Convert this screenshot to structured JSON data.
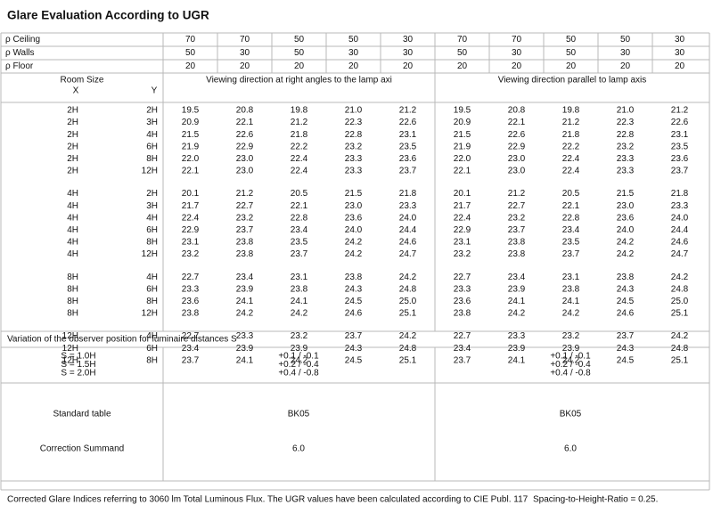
{
  "title": "Glare Evaluation According to UGR",
  "reflectances": [
    {
      "label": "ρ Ceiling",
      "values": [
        "70",
        "70",
        "50",
        "50",
        "30",
        "70",
        "70",
        "50",
        "50",
        "30"
      ]
    },
    {
      "label": "ρ Walls",
      "values": [
        "50",
        "30",
        "50",
        "30",
        "30",
        "50",
        "30",
        "50",
        "30",
        "30"
      ]
    },
    {
      "label": "ρ Floor",
      "values": [
        "20",
        "20",
        "20",
        "20",
        "20",
        "20",
        "20",
        "20",
        "20",
        "20"
      ]
    }
  ],
  "header": {
    "room_size": "Room Size",
    "x": "X",
    "y": "Y",
    "perpendicular": "Viewing direction at right angles to the lamp axi",
    "parallel": "Viewing direction parallel to lamp axis"
  },
  "groups": [
    {
      "rows": [
        {
          "x": "2H",
          "y": "2H",
          "values": [
            "19.5",
            "20.8",
            "19.8",
            "21.0",
            "21.2",
            "19.5",
            "20.8",
            "19.8",
            "21.0",
            "21.2"
          ]
        },
        {
          "x": "2H",
          "y": "3H",
          "values": [
            "20.9",
            "22.1",
            "21.2",
            "22.3",
            "22.6",
            "20.9",
            "22.1",
            "21.2",
            "22.3",
            "22.6"
          ]
        },
        {
          "x": "2H",
          "y": "4H",
          "values": [
            "21.5",
            "22.6",
            "21.8",
            "22.8",
            "23.1",
            "21.5",
            "22.6",
            "21.8",
            "22.8",
            "23.1"
          ]
        },
        {
          "x": "2H",
          "y": "6H",
          "values": [
            "21.9",
            "22.9",
            "22.2",
            "23.2",
            "23.5",
            "21.9",
            "22.9",
            "22.2",
            "23.2",
            "23.5"
          ]
        },
        {
          "x": "2H",
          "y": "8H",
          "values": [
            "22.0",
            "23.0",
            "22.4",
            "23.3",
            "23.6",
            "22.0",
            "23.0",
            "22.4",
            "23.3",
            "23.6"
          ]
        },
        {
          "x": "2H",
          "y": "12H",
          "values": [
            "22.1",
            "23.0",
            "22.4",
            "23.3",
            "23.7",
            "22.1",
            "23.0",
            "22.4",
            "23.3",
            "23.7"
          ]
        }
      ]
    },
    {
      "rows": [
        {
          "x": "4H",
          "y": "2H",
          "values": [
            "20.1",
            "21.2",
            "20.5",
            "21.5",
            "21.8",
            "20.1",
            "21.2",
            "20.5",
            "21.5",
            "21.8"
          ]
        },
        {
          "x": "4H",
          "y": "3H",
          "values": [
            "21.7",
            "22.7",
            "22.1",
            "23.0",
            "23.3",
            "21.7",
            "22.7",
            "22.1",
            "23.0",
            "23.3"
          ]
        },
        {
          "x": "4H",
          "y": "4H",
          "values": [
            "22.4",
            "23.2",
            "22.8",
            "23.6",
            "24.0",
            "22.4",
            "23.2",
            "22.8",
            "23.6",
            "24.0"
          ]
        },
        {
          "x": "4H",
          "y": "6H",
          "values": [
            "22.9",
            "23.7",
            "23.4",
            "24.0",
            "24.4",
            "22.9",
            "23.7",
            "23.4",
            "24.0",
            "24.4"
          ]
        },
        {
          "x": "4H",
          "y": "8H",
          "values": [
            "23.1",
            "23.8",
            "23.5",
            "24.2",
            "24.6",
            "23.1",
            "23.8",
            "23.5",
            "24.2",
            "24.6"
          ]
        },
        {
          "x": "4H",
          "y": "12H",
          "values": [
            "23.2",
            "23.8",
            "23.7",
            "24.2",
            "24.7",
            "23.2",
            "23.8",
            "23.7",
            "24.2",
            "24.7"
          ]
        }
      ]
    },
    {
      "rows": [
        {
          "x": "8H",
          "y": "4H",
          "values": [
            "22.7",
            "23.4",
            "23.1",
            "23.8",
            "24.2",
            "22.7",
            "23.4",
            "23.1",
            "23.8",
            "24.2"
          ]
        },
        {
          "x": "8H",
          "y": "6H",
          "values": [
            "23.3",
            "23.9",
            "23.8",
            "24.3",
            "24.8",
            "23.3",
            "23.9",
            "23.8",
            "24.3",
            "24.8"
          ]
        },
        {
          "x": "8H",
          "y": "8H",
          "values": [
            "23.6",
            "24.1",
            "24.1",
            "24.5",
            "25.0",
            "23.6",
            "24.1",
            "24.1",
            "24.5",
            "25.0"
          ]
        },
        {
          "x": "8H",
          "y": "12H",
          "values": [
            "23.8",
            "24.2",
            "24.2",
            "24.6",
            "25.1",
            "23.8",
            "24.2",
            "24.2",
            "24.6",
            "25.1"
          ]
        }
      ]
    },
    {
      "rows": [
        {
          "x": "12H",
          "y": "4H",
          "values": [
            "22.7",
            "23.3",
            "23.2",
            "23.7",
            "24.2",
            "22.7",
            "23.3",
            "23.2",
            "23.7",
            "24.2"
          ]
        },
        {
          "x": "12H",
          "y": "6H",
          "values": [
            "23.4",
            "23.9",
            "23.9",
            "24.3",
            "24.8",
            "23.4",
            "23.9",
            "23.9",
            "24.3",
            "24.8"
          ]
        },
        {
          "x": "12H",
          "y": "8H",
          "values": [
            "23.7",
            "24.1",
            "24.2",
            "24.5",
            "25.1",
            "23.7",
            "24.1",
            "24.2",
            "24.5",
            "25.1"
          ]
        }
      ]
    }
  ],
  "variation": {
    "label": "Variation of the observer position for luminaire distances S",
    "s_labels": [
      "S = 1.0H",
      "S = 1.5H",
      "S = 2.0H"
    ],
    "perpendicular": [
      "+0.1 / -0.1",
      "+0.2 / -0.4",
      "+0.4 / -0.8"
    ],
    "parallel": [
      "+0.1 / -0.1",
      "+0.2 / -0.4",
      "+0.4 / -0.8"
    ]
  },
  "standard_table": {
    "label": "Standard table",
    "values": [
      "BK05",
      "BK05"
    ]
  },
  "correction": {
    "label": "Correction Summand",
    "values": [
      "6.0",
      "6.0"
    ]
  },
  "footer": {
    "note": "Corrected Glare Indices referring to 3060 lm Total Luminous Flux. The UGR values have been calculated according to CIE Publ. 117",
    "ratio": "Spacing-to-Height-Ratio = 0.25."
  }
}
